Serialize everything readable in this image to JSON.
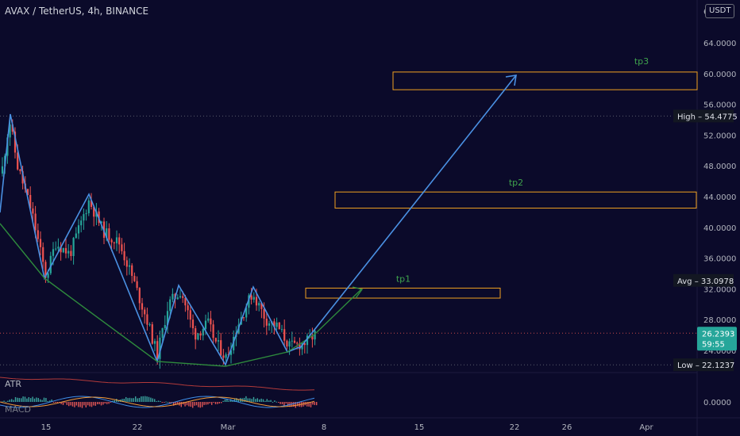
{
  "header": {
    "title": "AVAX / TetherUS, 4h, BINANCE",
    "currency_button": "USDT"
  },
  "price_axis": {
    "ticks": [
      "64.0000",
      "60.0000",
      "56.0000",
      "52.0000",
      "48.0000",
      "44.0000",
      "40.0000",
      "36.0000",
      "32.0000",
      "28.0000",
      "24.0000"
    ],
    "tick_values": [
      64,
      60,
      56,
      52,
      48,
      44,
      40,
      36,
      32,
      28,
      24
    ],
    "ylim": [
      22,
      66
    ],
    "partial_top_label": "6"
  },
  "time_axis": {
    "labels": [
      "15",
      "22",
      "Mar",
      "8",
      "15",
      "22",
      "26",
      "Apr"
    ]
  },
  "markers": {
    "high": {
      "label": "High",
      "value_text": "54.4775",
      "value": 54.4775
    },
    "avg": {
      "label": "Avg",
      "value_text": "33.0978",
      "value": 33.0978
    },
    "low": {
      "label": "Low",
      "value_text": "22.1237",
      "value": 22.1237
    },
    "current": {
      "value_text": "26.2393",
      "countdown": "59:55",
      "value": 26.2393
    }
  },
  "annotations": {
    "tp1": {
      "text": "tp1",
      "low": 30.8,
      "high": 32.1
    },
    "tp2": {
      "text": "tp2",
      "low": 42.5,
      "high": 44.6
    },
    "tp3": {
      "text": "tp3",
      "low": 57.9,
      "high": 60.2
    }
  },
  "indicators": {
    "atr_label": "ATR",
    "macd_label": "MACD",
    "macd_zero": "0.0000"
  },
  "colors": {
    "background": "#0b0a2a",
    "up": "#26a69a",
    "down": "#ef5350",
    "pattern_line": "#4a90e2",
    "neckline": "#2e8b3d",
    "target_box": "#f0a020",
    "tp_text": "#3fa34d",
    "label_bg": "#131722",
    "current_bg": "#26a69a"
  }
}
